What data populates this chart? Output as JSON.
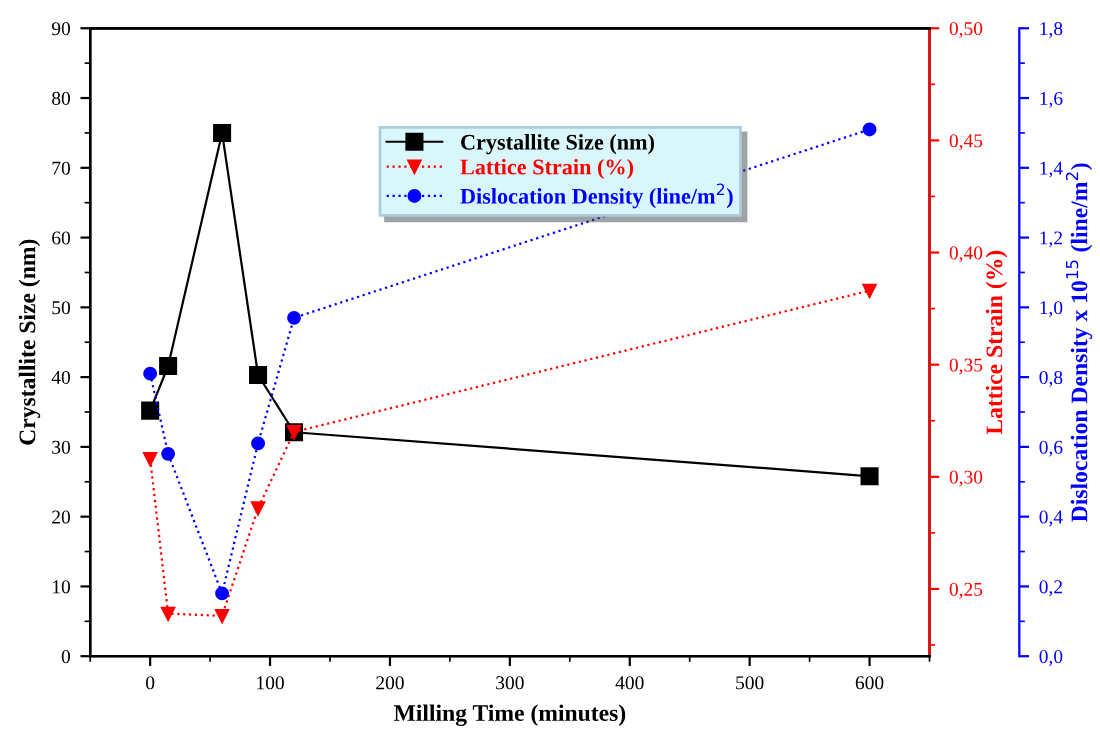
{
  "chart_data": {
    "type": "line",
    "xlabel": "Milling Time (minutes)",
    "ylabel": "Crystallite Size (nm)",
    "y2label": "Lattice Strain (%)",
    "y3label": "Dislocation Density x 10$^{15}$ (line/m$^{2}$)",
    "x": [
      0,
      15,
      60,
      90,
      120,
      600
    ],
    "series": [
      {
        "name": "Crystallite Size (nm)",
        "color": "#000000",
        "values": [
          35.2,
          41.6,
          75,
          40.3,
          32.1,
          25.8
        ],
        "marker": "square",
        "line_style": "solid"
      },
      {
        "name": "Lattice Strain (%)",
        "color": "#ff0000",
        "values": [
          0.308,
          0.239,
          0.238,
          0.286,
          0.32,
          0.383
        ],
        "marker": "triangle",
        "line_style": "dotted",
        "axis": "y2"
      },
      {
        "name": "Dislocation Density (line/m$^{2}$)",
        "color": "#0000ff",
        "values": [
          0.81,
          0.58,
          0.18,
          0.61,
          0.97,
          1.51
        ],
        "marker": "circle",
        "line_style": "dotted",
        "axis": "y3"
      }
    ],
    "xlim": [
      -50,
      650
    ],
    "xticks": [
      0,
      100,
      200,
      300,
      400,
      500,
      600
    ],
    "ylim": [
      0,
      90
    ],
    "yticks": [
      0,
      10,
      20,
      30,
      40,
      50,
      60,
      70,
      80,
      90
    ],
    "y2lim": [
      0.22,
      0.5
    ],
    "y2ticks": [
      {
        "value": 0.25,
        "label": "0,25"
      },
      {
        "value": 0.3,
        "label": "0,30"
      },
      {
        "value": 0.35,
        "label": "0,35"
      },
      {
        "value": 0.4,
        "label": "0,40"
      },
      {
        "value": 0.45,
        "label": "0,45"
      },
      {
        "value": 0.5,
        "label": "0,50"
      }
    ],
    "y3lim": [
      0,
      1.8
    ],
    "y3ticks": [
      {
        "value": 0,
        "label": "0,0"
      },
      {
        "value": 0.2,
        "label": "0,2"
      },
      {
        "value": 0.4,
        "label": "0,4"
      },
      {
        "value": 0.6,
        "label": "0,6"
      },
      {
        "value": 0.8,
        "label": "0,8"
      },
      {
        "value": 1.0,
        "label": "1,0"
      },
      {
        "value": 1.2,
        "label": "1,2"
      },
      {
        "value": 1.4,
        "label": "1,4"
      },
      {
        "value": 1.6,
        "label": "1,6"
      },
      {
        "value": 1.8,
        "label": "1,8"
      }
    ],
    "grid": false,
    "legend": "top"
  }
}
